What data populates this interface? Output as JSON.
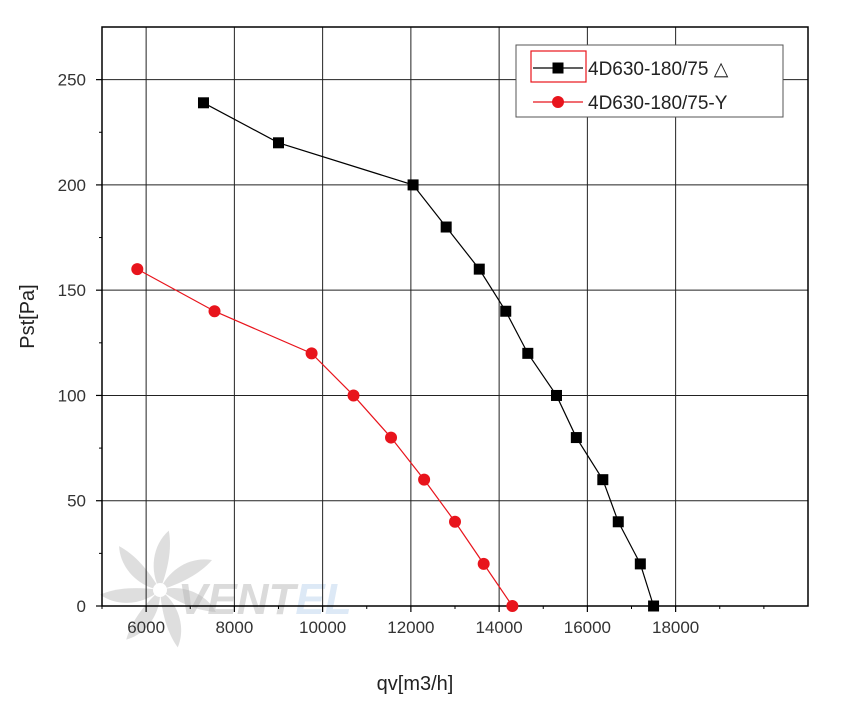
{
  "chart_data": {
    "type": "line",
    "xlabel": "qv[m3/h]",
    "ylabel": "Pst[Pa]",
    "xlim": [
      5000,
      21000
    ],
    "ylim": [
      0,
      275
    ],
    "xticks": [
      6000,
      8000,
      10000,
      12000,
      14000,
      16000,
      18000
    ],
    "yticks": [
      0,
      50,
      100,
      150,
      200,
      250
    ],
    "grid": true,
    "legend_position": "top-right",
    "series": [
      {
        "name": "4D630-180/75 △",
        "color": "#000000",
        "marker": "square",
        "x": [
          7300,
          9000,
          12050,
          12800,
          13550,
          14150,
          14650,
          15300,
          15750,
          16350,
          16700,
          17200,
          17500
        ],
        "y": [
          239,
          220,
          200,
          180,
          160,
          140,
          120,
          100,
          80,
          60,
          40,
          20,
          0
        ]
      },
      {
        "name": "4D630-180/75-Y",
        "color": "#e8141c",
        "marker": "circle",
        "x": [
          5800,
          7550,
          9750,
          10700,
          11550,
          12300,
          13000,
          13650,
          14300
        ],
        "y": [
          160,
          140,
          120,
          100,
          80,
          60,
          40,
          20,
          0
        ]
      }
    ]
  },
  "watermark": {
    "text": "VENTEL",
    "icon": "fan-icon",
    "color": "#b8b8b8",
    "accent": "#bcd4ee"
  }
}
